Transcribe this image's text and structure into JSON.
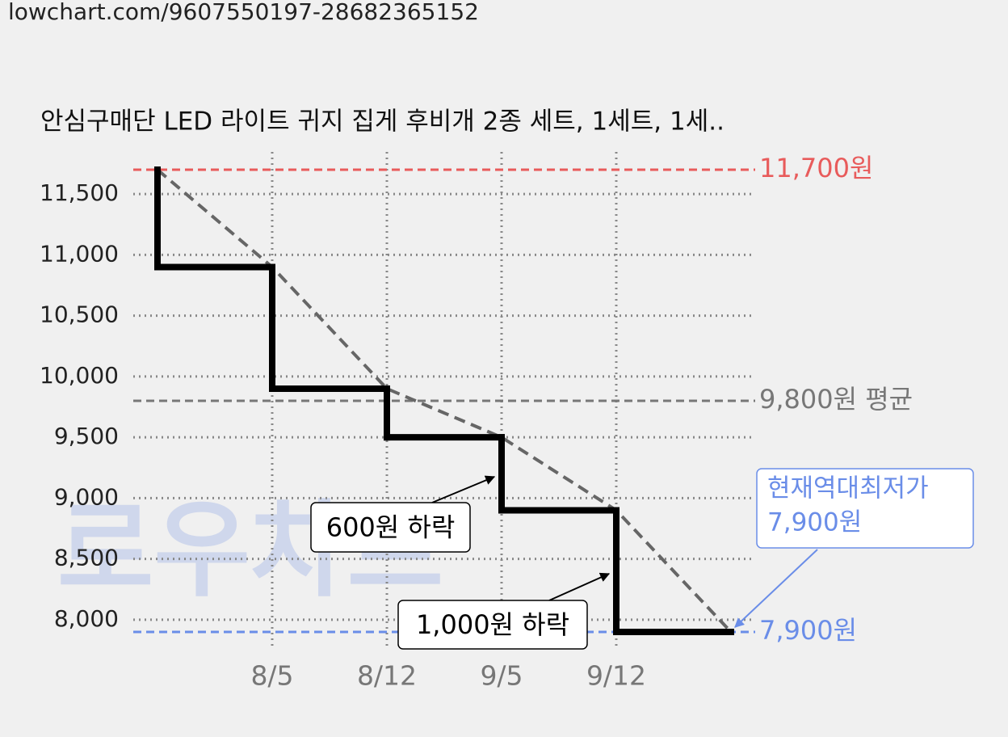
{
  "url": "lowchart.com/9607550197-28682365152",
  "watermark": "로우차트",
  "chart_data": {
    "type": "step",
    "title": "안심구매단 LED 라이트 귀지 집게 후비개 2종 세트, 1세트, 1세..",
    "categories": [
      null,
      "8/5",
      "8/12",
      "9/5",
      "9/12",
      null
    ],
    "series": [
      {
        "values": [
          11700,
          10900,
          9900,
          9500,
          8900,
          7900
        ],
        "color": "#000000",
        "trend_color": "#666666"
      }
    ],
    "ylim": [
      7800,
      11800
    ],
    "yticks": [
      {
        "value": 8000,
        "label": "8,000"
      },
      {
        "value": 8500,
        "label": "8,500"
      },
      {
        "value": 9000,
        "label": "9,000"
      },
      {
        "value": 9500,
        "label": "9,500"
      },
      {
        "value": 10000,
        "label": "10,000"
      },
      {
        "value": 10500,
        "label": "10,500"
      },
      {
        "value": 11000,
        "label": "11,000"
      },
      {
        "value": 11500,
        "label": "11,500"
      }
    ],
    "grid": true,
    "reference_lines": [
      {
        "value": 11700,
        "label": "11,700원",
        "color": "#e85b5b"
      },
      {
        "value": 9800,
        "label": "9,800원 평균",
        "color": "#777777"
      },
      {
        "value": 7900,
        "label": "7,900원",
        "color": "#6a8de8"
      }
    ],
    "annotations": [
      "600원 하락",
      "1,000원 하락"
    ],
    "callout": {
      "line1": "현재역대최저가",
      "line2": "7,900원",
      "color": "#6a8de8"
    }
  }
}
